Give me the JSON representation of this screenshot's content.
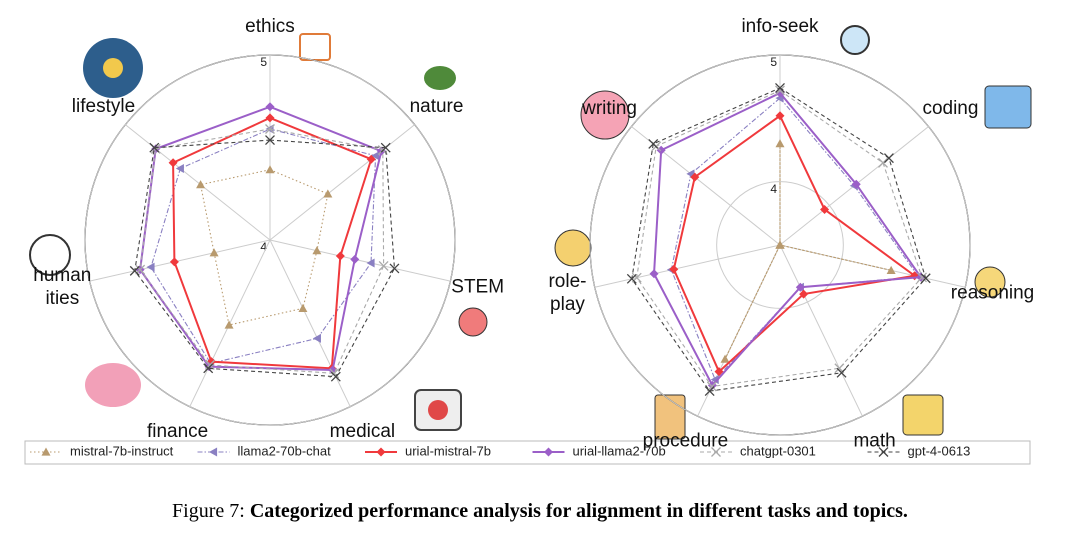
{
  "chart_data": [
    {
      "type": "radar",
      "axes": [
        "ethics",
        "nature",
        "STEM",
        "medical",
        "finance",
        "human\nities",
        "lifestyle"
      ],
      "rlim": [
        4,
        5
      ],
      "rticks": [
        4,
        5
      ],
      "series": [
        {
          "name": "mistral-7b-instruct",
          "color": "#b89a6e",
          "linestyle": "dotted",
          "marker": "triangle-up",
          "values": [
            4.38,
            4.4,
            4.26,
            4.41,
            4.51,
            4.31,
            4.48
          ]
        },
        {
          "name": "llama2-70b-chat",
          "color": "#8a80c2",
          "linestyle": "dashdot",
          "marker": "triangle-left",
          "values": [
            4.6,
            4.73,
            4.56,
            4.59,
            4.74,
            4.66,
            4.62
          ]
        },
        {
          "name": "urial-mistral-7b",
          "color": "#f0393c",
          "linestyle": "solid",
          "marker": "diamond",
          "values": [
            4.66,
            4.7,
            4.39,
            4.77,
            4.73,
            4.53,
            4.67
          ]
        },
        {
          "name": "urial-llama2-70b",
          "color": "#9b5fc8",
          "linestyle": "solid",
          "marker": "diamond",
          "values": [
            4.72,
            4.77,
            4.47,
            4.78,
            4.76,
            4.72,
            4.79
          ]
        },
        {
          "name": "chatgpt-0301",
          "color": "#aaaaaa",
          "linestyle": "dashed",
          "marker": "x",
          "values": [
            4.6,
            4.78,
            4.63,
            4.8,
            4.75,
            4.72,
            4.79
          ]
        },
        {
          "name": "gpt-4-0613",
          "color": "#444444",
          "linestyle": "dashed",
          "marker": "x",
          "values": [
            4.54,
            4.8,
            4.69,
            4.82,
            4.77,
            4.75,
            4.8
          ]
        }
      ]
    },
    {
      "type": "radar",
      "axes": [
        "info-seek",
        "coding",
        "reasoning",
        "math",
        "procedure",
        "role-\nplay",
        "writing"
      ],
      "rlim": [
        3.5,
        5
      ],
      "rticks": [
        4,
        5
      ],
      "series": [
        {
          "color": "#b89a6e",
          "linestyle": "dotted",
          "marker": "triangle-up",
          "values": [
            4.3,
            3.5,
            4.4,
            3.5,
            4.5,
            3.5,
            3.5
          ]
        },
        {
          "color": "#8a80c2",
          "linestyle": "dashdot",
          "marker": "triangle-left",
          "values": [
            4.66,
            4.25,
            4.62,
            3.87,
            4.68,
            4.38,
            4.4
          ]
        },
        {
          "color": "#f0393c",
          "linestyle": "solid",
          "marker": "diamond",
          "values": [
            4.52,
            3.95,
            4.59,
            3.93,
            4.61,
            4.36,
            4.36
          ]
        },
        {
          "color": "#9b5fc8",
          "linestyle": "solid",
          "marker": "diamond",
          "values": [
            4.7,
            4.27,
            4.64,
            3.87,
            4.73,
            4.52,
            4.7
          ]
        },
        {
          "color": "#aaaaaa",
          "linestyle": "dashed",
          "marker": "x",
          "values": [
            4.72,
            4.54,
            4.65,
            4.58,
            4.74,
            4.66,
            4.75
          ]
        },
        {
          "color": "#444444",
          "linestyle": "dashed",
          "marker": "x",
          "values": [
            4.74,
            4.6,
            4.68,
            4.62,
            4.78,
            4.7,
            4.78
          ]
        }
      ]
    }
  ],
  "caption": {
    "label": "Figure 7:",
    "text": "Categorized performance analysis for alignment in different tasks and topics."
  }
}
